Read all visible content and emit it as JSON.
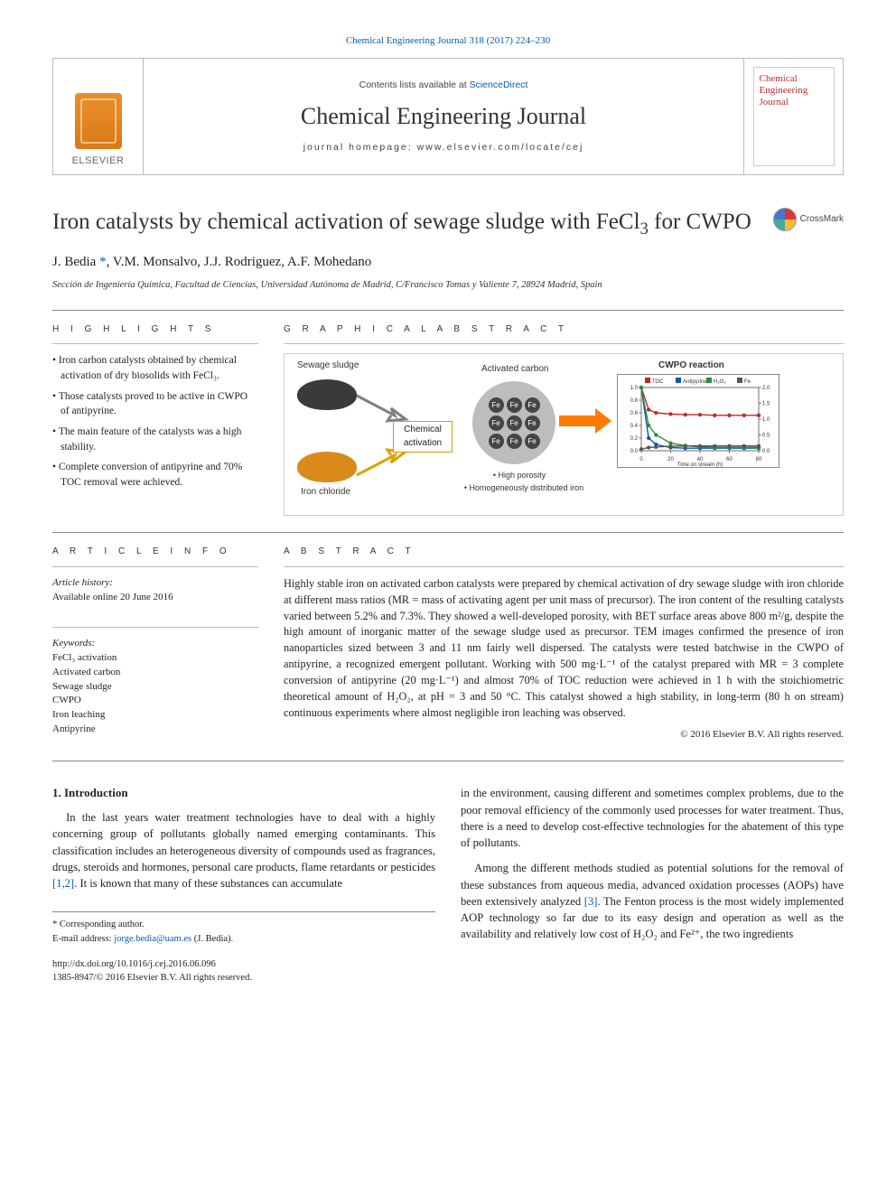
{
  "citation": "Chemical Engineering Journal 318 (2017) 224–230",
  "masthead": {
    "publisher": "ELSEVIER",
    "contents_prefix": "Contents lists available at ",
    "contents_link": "ScienceDirect",
    "journal": "Chemical Engineering Journal",
    "homepage_prefix": "journal homepage: ",
    "homepage": "www.elsevier.com/locate/cej",
    "cover_text": "Chemical Engineering Journal"
  },
  "article": {
    "title_html": "Iron catalysts by chemical activation of sewage sludge with FeCl<sub>3</sub> for CWPO",
    "crossmark": "CrossMark",
    "authors_html": "J. Bedia <a>*</a>, V.M. Monsalvo, J.J. Rodriguez, A.F. Mohedano",
    "affiliation": "Sección de Ingeniería Química, Facultad de Ciencias, Universidad Autónoma de Madrid, C/Francisco Tomas y Valiente 7, 28924 Madrid, Spain"
  },
  "sections": {
    "highlights_label": "H I G H L I G H T S",
    "graphical_label": "G R A P H I C A L  A B S T R A C T",
    "article_info_label": "A R T I C L E  I N F O",
    "abstract_label": "A B S T R A C T"
  },
  "highlights": [
    "Iron carbon catalysts obtained by chemical activation of dry biosolids with FeCl₃.",
    "Those catalysts proved to be active in CWPO of antipyrine.",
    "The main feature of the catalysts was a high stability.",
    "Complete conversion of antipyrine and 70% TOC removal were achieved."
  ],
  "graphical": {
    "labels": {
      "sludge": "Sewage sludge",
      "iron_chloride": "Iron chloride",
      "chem_act": "Chemical activation",
      "activated_carbon": "Activated carbon",
      "cwpo": "CWPO reaction",
      "bul1": "•  High porosity",
      "bul2": "•  Homogeneously distributed iron"
    },
    "colors": {
      "sludge_pile": "#3a3a3a",
      "fecl_pile": "#d98a1a",
      "arrow_iron": "#d9a400",
      "arrow_gray": "#808080",
      "arrow_orange": "#ff7a00",
      "carbon_bg": "#bdbdbd",
      "fe_ball": "#454545",
      "chart_border": "#888888"
    },
    "chart": {
      "type": "line",
      "title": "CWPO reaction",
      "x_label": "Time on stream (h)",
      "xlim": [
        0,
        80
      ],
      "xticks": [
        0,
        20,
        40,
        60,
        80
      ],
      "y_left_label": "C/C₀ Antipyrine; TOC/TOC₀",
      "y_left_lim": [
        0.0,
        1.0
      ],
      "y_left_ticks": [
        0.0,
        0.2,
        0.4,
        0.6,
        0.8,
        1.0
      ],
      "y_right_label": "Fe (mg·L⁻¹)",
      "y_right_lim": [
        0.0,
        2.0
      ],
      "y_right_ticks": [
        0.0,
        0.5,
        1.0,
        1.5,
        2.0
      ],
      "legend": [
        "TOC",
        "Antipyrine",
        "H₂O₂",
        "Fe"
      ],
      "series": [
        {
          "name": "TOC",
          "color": "#c02828",
          "marker": "square",
          "x": [
            0,
            5,
            10,
            20,
            30,
            40,
            50,
            60,
            70,
            80
          ],
          "y": [
            1.0,
            0.65,
            0.6,
            0.58,
            0.57,
            0.57,
            0.56,
            0.56,
            0.56,
            0.56
          ]
        },
        {
          "name": "Antipyrine",
          "color": "#0a5aa8",
          "marker": "diamond",
          "x": [
            0,
            5,
            10,
            20,
            30,
            40,
            50,
            60,
            70,
            80
          ],
          "y": [
            1.0,
            0.2,
            0.1,
            0.05,
            0.04,
            0.04,
            0.04,
            0.04,
            0.04,
            0.04
          ]
        },
        {
          "name": "H2O2",
          "color": "#2e8b3d",
          "marker": "triangle",
          "x": [
            0,
            5,
            10,
            20,
            30,
            40,
            50,
            60,
            70,
            80
          ],
          "y": [
            1.0,
            0.4,
            0.25,
            0.12,
            0.08,
            0.06,
            0.05,
            0.05,
            0.05,
            0.05
          ]
        },
        {
          "name": "Fe",
          "color": "#555555",
          "marker": "circle",
          "axis": "right",
          "x": [
            0,
            5,
            10,
            20,
            30,
            40,
            50,
            60,
            70,
            80
          ],
          "y": [
            0.05,
            0.1,
            0.12,
            0.14,
            0.15,
            0.15,
            0.15,
            0.15,
            0.15,
            0.15
          ]
        }
      ],
      "line_width": 1.4,
      "marker_size": 3,
      "background": "#ffffff",
      "font_size_pt": 7
    }
  },
  "article_info": {
    "history_label": "Article history:",
    "history": "Available online 20 June 2016",
    "keywords_label": "Keywords:",
    "keywords": [
      "FeCl₃ activation",
      "Activated carbon",
      "Sewage sludge",
      "CWPO",
      "Iron leaching",
      "Antipyrine"
    ]
  },
  "abstract": "Highly stable iron on activated carbon catalysts were prepared by chemical activation of dry sewage sludge with iron chloride at different mass ratios (MR = mass of activating agent per unit mass of precursor). The iron content of the resulting catalysts varied between 5.2% and 7.3%. They showed a well-developed porosity, with BET surface areas above 800 m²/g, despite the high amount of inorganic matter of the sewage sludge used as precursor. TEM images confirmed the presence of iron nanoparticles sized between 3 and 11 nm fairly well dispersed. The catalysts were tested batchwise in the CWPO of antipyrine, a recognized emergent pollutant. Working with 500 mg·L⁻¹ of the catalyst prepared with MR = 3 complete conversion of antipyrine (20 mg·L⁻¹) and almost 70% of TOC reduction were achieved in 1 h with the stoichiometric theoretical amount of H₂O₂, at pH = 3 and 50 °C. This catalyst showed a high stability, in long-term (80 h on stream) continuous experiments where almost negligible iron leaching was observed.",
  "copyright": "© 2016 Elsevier B.V. All rights reserved.",
  "body": {
    "intro_heading": "1. Introduction",
    "p1_html": "In the last years water treatment technologies have to deal with a highly concerning group of pollutants globally named emerging contaminants. This classification includes an heterogeneous diversity of compounds used as fragrances, drugs, steroids and hormones, personal care products, flame retardants or pesticides <span class=\"ref\">[1,2]</span>. It is known that many of these substances can accumulate",
    "p2": "in the environment, causing different and sometimes complex problems, due to the poor removal efficiency of the commonly used processes for water treatment. Thus, there is a need to develop cost-effective technologies for the abatement of this type of pollutants.",
    "p3_html": "Among the different methods studied as potential solutions for the removal of these substances from aqueous media, advanced oxidation processes (AOPs) have been extensively analyzed <span class=\"ref\">[3]</span>. The Fenton process is the most widely implemented AOP technology so far due to its easy design and operation as well as the availability and relatively low cost of H₂O₂ and Fe²⁺, the two ingredients"
  },
  "footer": {
    "corr_label": "* Corresponding author.",
    "email_label": "E-mail address: ",
    "email": "jorge.bedia@uam.es",
    "email_paren": " (J. Bedia).",
    "doi": "http://dx.doi.org/10.1016/j.cej.2016.06.096",
    "issn_line": "1385-8947/© 2016 Elsevier B.V. All rights reserved."
  },
  "colors": {
    "link": "#0b5aa8",
    "accent_orange": "#e9902a",
    "rule": "#888888",
    "text": "#222222"
  }
}
